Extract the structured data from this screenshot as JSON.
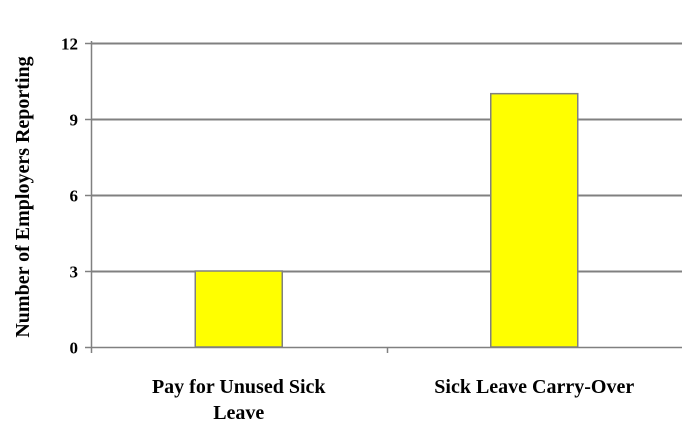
{
  "chart_data": {
    "type": "bar",
    "categories": [
      "Pay for Unused Sick Leave",
      "Sick Leave Carry-Over"
    ],
    "category_label_lines": [
      [
        "Pay for Unused Sick",
        "Leave"
      ],
      [
        "Sick Leave Carry-Over"
      ]
    ],
    "series": [
      {
        "values": [
          3,
          10
        ]
      }
    ],
    "title": "",
    "xlabel": "",
    "ylabel": "Number of Employers Reporting",
    "ylim": [
      0,
      12
    ],
    "yticks": [
      0,
      3,
      6,
      9,
      12
    ],
    "grid": true,
    "legend": "none",
    "colors": {
      "bar_fill": "#ffff00",
      "bar_stroke": "#808080",
      "grid": "#808080",
      "axis": "#808080",
      "text": "#000000"
    }
  }
}
